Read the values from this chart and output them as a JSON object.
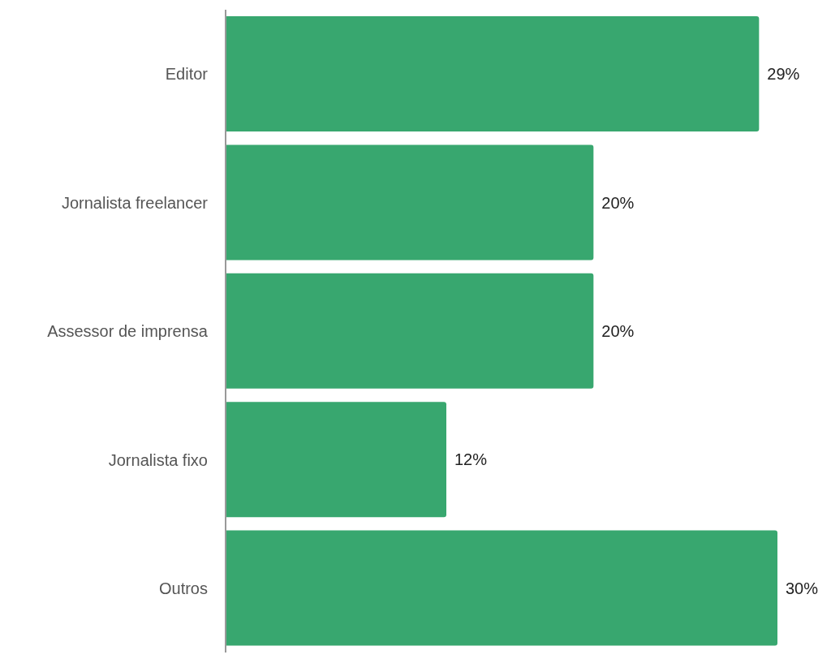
{
  "chart_data": {
    "type": "bar",
    "orientation": "horizontal",
    "categories": [
      "Editor",
      "Jornalista freelancer",
      "Assessor de imprensa",
      "Jornalista fixo",
      "Outros"
    ],
    "values": [
      29,
      20,
      20,
      12,
      30
    ],
    "value_labels": [
      "29%",
      "20%",
      "20%",
      "12%",
      "30%"
    ],
    "color": "#38a76f",
    "tick_labels": "y",
    "grid": false,
    "legend": false
  }
}
